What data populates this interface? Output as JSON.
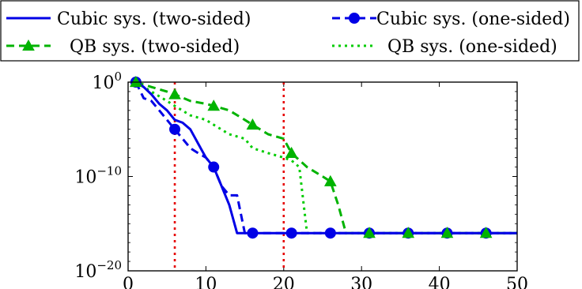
{
  "chart_data": {
    "type": "line",
    "title": "",
    "xlabel": "",
    "ylabel": "",
    "xlim": [
      0,
      50
    ],
    "y_scale": "log",
    "ylim": [
      1e-20,
      1
    ],
    "x_ticks": [
      0,
      10,
      20,
      30,
      40,
      50
    ],
    "x_tick_labels": [
      "0",
      "10",
      "20",
      "30",
      "40",
      "50"
    ],
    "y_ticks": [
      1,
      1e-10,
      1e-20
    ],
    "y_tick_labels": [
      {
        "base": "10",
        "exp": "0"
      },
      {
        "base": "10",
        "exp": "−10"
      },
      {
        "base": "10",
        "exp": "−20"
      }
    ],
    "grid": false,
    "legend": {
      "placement": "top",
      "columns": 2
    },
    "vertical_lines": [
      {
        "x": 6,
        "color": "#e60000",
        "style": "dotted"
      },
      {
        "x": 20,
        "color": "#e60000",
        "style": "dotted"
      }
    ],
    "series": [
      {
        "name": "Cubic sys. (two-sided)",
        "color": "#0000e6",
        "line": "solid",
        "marker": "none",
        "x": [
          1,
          2,
          3,
          4,
          5,
          6,
          7,
          8,
          9,
          10,
          11,
          12,
          13,
          14,
          15,
          16,
          20,
          30,
          40,
          50
        ],
        "y": [
          1,
          0.3,
          0.05,
          0.005,
          0.001,
          0.0001,
          5e-05,
          1e-05,
          3e-07,
          1e-08,
          1e-09,
          1e-11,
          1e-13,
          1e-16,
          1e-16,
          1e-16,
          1e-16,
          1e-16,
          1e-16,
          1e-16
        ]
      },
      {
        "name": "Cubic sys. (one-sided)",
        "color": "#0000e6",
        "line": "dashed",
        "marker": "circle",
        "x": [
          1,
          2,
          3,
          4,
          5,
          6,
          7,
          8,
          9,
          10,
          11,
          12,
          13,
          14,
          15,
          16,
          20,
          30,
          40,
          50
        ],
        "y": [
          1,
          0.02,
          0.01,
          0.001,
          0.0001,
          1e-05,
          1e-06,
          1e-07,
          3e-08,
          1e-08,
          1e-09,
          1e-11,
          1e-12,
          1e-12,
          1e-16,
          1e-16,
          1e-16,
          1e-16,
          1e-16,
          1e-16
        ],
        "marker_x": [
          1,
          6,
          11,
          16,
          21,
          26,
          31,
          36,
          41,
          46
        ],
        "marker_y": [
          1,
          1e-05,
          1e-09,
          1e-16,
          1e-16,
          1e-16,
          1e-16,
          1e-16,
          1e-16,
          1e-16
        ]
      },
      {
        "name": "QB sys. (two-sided)",
        "color": "#00b300",
        "line": "dashed",
        "marker": "triangle",
        "x": [
          1,
          3,
          5,
          6,
          8,
          10,
          11,
          13,
          15,
          16,
          18,
          20,
          21,
          23,
          25,
          26,
          27,
          28,
          30,
          40,
          50
        ],
        "y": [
          1,
          0.3,
          0.1,
          0.05,
          0.01,
          0.005,
          0.003,
          0.001,
          0.0001,
          3e-05,
          3e-06,
          1e-06,
          3e-08,
          1e-09,
          1e-10,
          3e-11,
          1e-13,
          1e-16,
          1e-16,
          1e-16,
          1e-16
        ],
        "marker_x": [
          1,
          6,
          11,
          16,
          21,
          26,
          31,
          36,
          41,
          46
        ],
        "marker_y": [
          1,
          0.05,
          0.003,
          3e-05,
          3e-08,
          3e-11,
          1e-16,
          1e-16,
          1e-16,
          1e-16
        ]
      },
      {
        "name": "QB sys. (one-sided)",
        "color": "#00cc00",
        "line": "dotted",
        "marker": "none",
        "x": [
          1,
          3,
          5,
          6,
          8,
          10,
          11,
          13,
          15,
          16,
          18,
          20,
          21,
          22,
          23,
          25,
          30,
          40,
          50
        ],
        "y": [
          1,
          0.1,
          0.01,
          0.003,
          0.0003,
          0.0001,
          3e-05,
          3e-06,
          1e-06,
          1e-07,
          3e-08,
          1e-08,
          5e-09,
          1e-09,
          1e-16,
          1e-16,
          1e-16,
          1e-16,
          1e-16
        ]
      }
    ]
  }
}
